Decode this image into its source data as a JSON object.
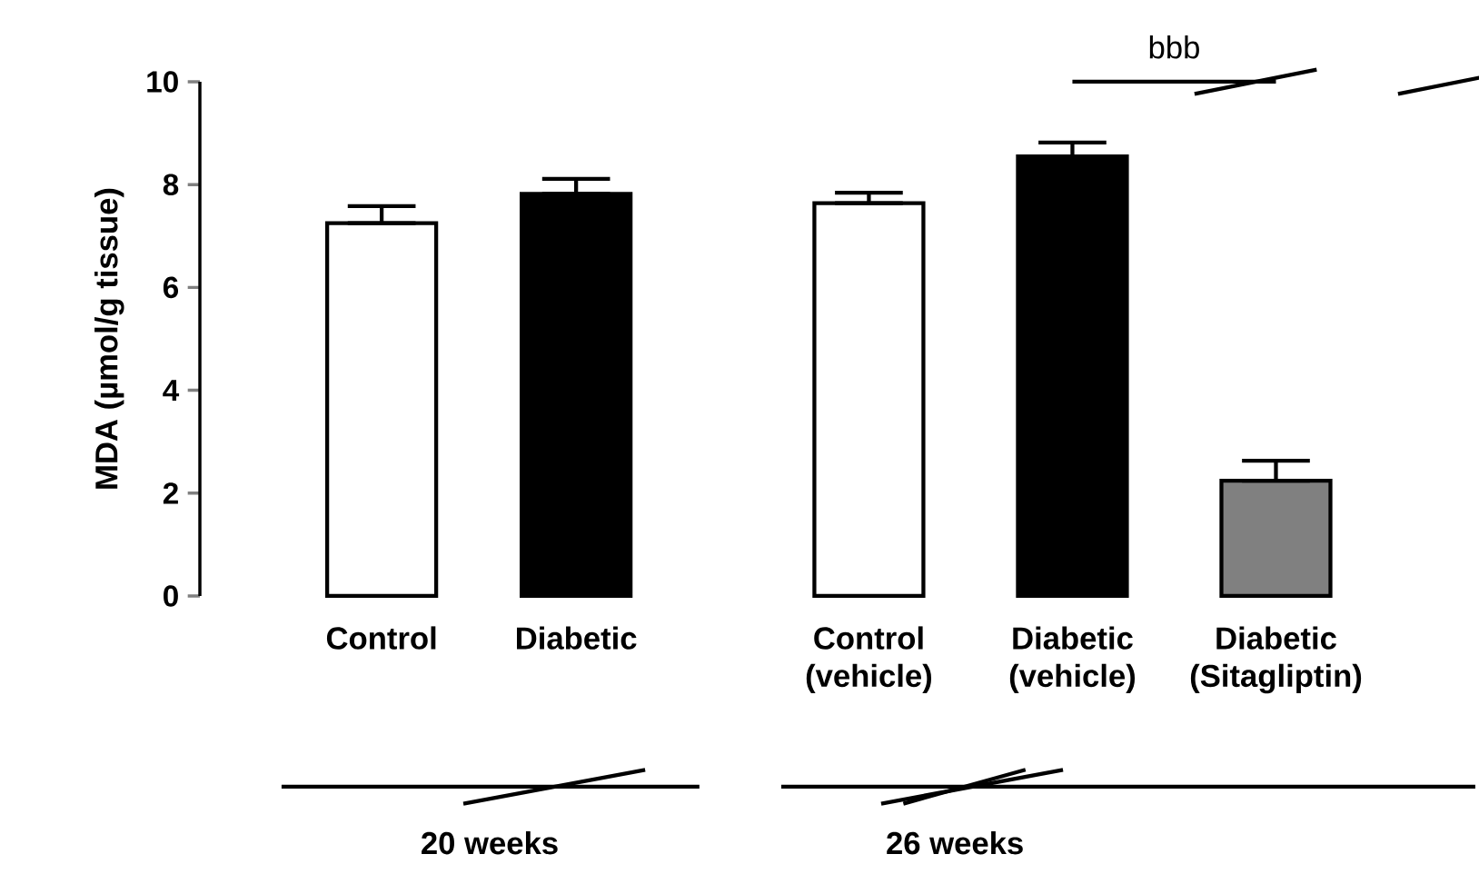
{
  "chart_data": [
    {
      "type": "bar",
      "xlabel": "20 weeks",
      "ylabel": "MDA (µmol/g tissue)",
      "categories": [
        "Control",
        "Diabetic"
      ],
      "values": [
        7.25,
        7.82
      ],
      "colors": [
        "#ffffff",
        "#000000"
      ],
      "errors": [
        [
          7.25,
          7.58
        ],
        [
          7.82,
          8.11
        ]
      ],
      "ylim": [
        0,
        10
      ],
      "yticks": [
        0,
        2,
        4,
        6,
        8,
        10
      ]
    },
    {
      "type": "bar",
      "xlabel": "26 weeks",
      "categories": [
        "Control (vehicle)",
        "Diabetic (vehicle)",
        "Diabetic (Sitagliptin)"
      ],
      "values": [
        7.64,
        8.55,
        2.24
      ],
      "colors": [
        "#ffffff",
        "#000000",
        "#808080"
      ],
      "errors": [
        [
          7.64,
          7.84
        ],
        [
          8.55,
          8.82
        ],
        [
          2.24,
          2.63
        ]
      ],
      "ylim": [
        0,
        10
      ],
      "yticks": [
        0,
        2,
        4,
        6,
        8,
        10
      ],
      "tick_labels": "x",
      "annotations": [
        "bbb"
      ]
    }
  ]
}
